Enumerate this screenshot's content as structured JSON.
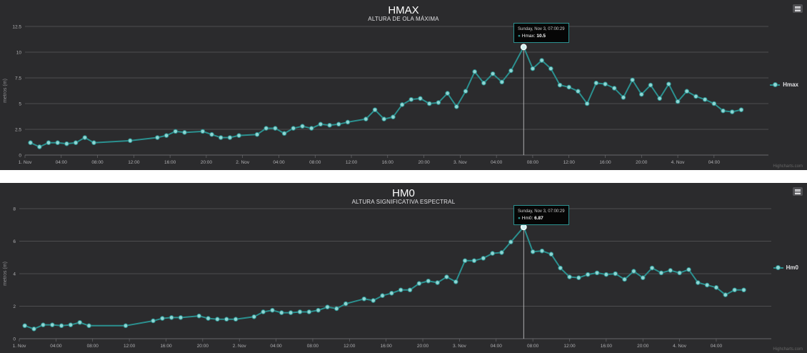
{
  "charts": [
    {
      "title": "HMAX",
      "subtitle": "ALTURA DE OLA MÁXIMA",
      "ylabel": "metros (m)",
      "legend": "Hmax",
      "credits": "Highcharts.com",
      "tooltip": {
        "header": "Sunday, Nov 3, 07:00:29",
        "series": "Hmax",
        "value": "10.5"
      }
    },
    {
      "title": "HM0",
      "subtitle": "ALTURA SIGNIFICATIVA ESPECTRAL",
      "ylabel": "metros (m)",
      "legend": "Hm0",
      "credits": "Highcharts.com",
      "tooltip": {
        "header": "Sunday, Nov 3, 07:00:29",
        "series": "Hm0",
        "value": "6.87"
      }
    }
  ],
  "colors": {
    "series": "#2b908f",
    "marker_fill": "#8fd6d3",
    "background": "#2b2b2d",
    "grid": "#707073"
  },
  "chart_data": [
    {
      "type": "line",
      "title": "HMAX",
      "subtitle": "ALTURA DE OLA MÁXIMA",
      "ylabel": "metros (m)",
      "xlabel": "",
      "ylim": [
        0,
        12.5
      ],
      "yticks": [
        0,
        2.5,
        5,
        7.5,
        10,
        12.5
      ],
      "xlim": [
        0,
        82
      ],
      "xticks": [
        {
          "x": 0,
          "label": "1. Nov"
        },
        {
          "x": 4,
          "label": "04:00"
        },
        {
          "x": 8,
          "label": "08:00"
        },
        {
          "x": 12,
          "label": "12:00"
        },
        {
          "x": 16,
          "label": "16:00"
        },
        {
          "x": 20,
          "label": "20:00"
        },
        {
          "x": 24,
          "label": "2. Nov"
        },
        {
          "x": 28,
          "label": "04:00"
        },
        {
          "x": 32,
          "label": "08:00"
        },
        {
          "x": 36,
          "label": "12:00"
        },
        {
          "x": 40,
          "label": "16:00"
        },
        {
          "x": 44,
          "label": "20:00"
        },
        {
          "x": 48,
          "label": "3. Nov"
        },
        {
          "x": 52,
          "label": "04:00"
        },
        {
          "x": 56,
          "label": "08:00"
        },
        {
          "x": 60,
          "label": "12:00"
        },
        {
          "x": 64,
          "label": "16:00"
        },
        {
          "x": 68,
          "label": "20:00"
        },
        {
          "x": 72,
          "label": "4. Nov"
        },
        {
          "x": 76,
          "label": "04:00"
        }
      ],
      "grid": true,
      "legend_position": "right",
      "highlight_x": 55,
      "series": [
        {
          "name": "Hmax",
          "x": [
            0.6,
            1.6,
            2.6,
            3.6,
            4.6,
            5.6,
            6.6,
            7.6,
            11.6,
            14.6,
            15.6,
            16.6,
            17.6,
            19.6,
            20.6,
            21.6,
            22.6,
            23.6,
            25.6,
            26.6,
            27.6,
            28.6,
            29.6,
            30.6,
            31.6,
            32.6,
            33.6,
            34.6,
            35.6,
            37.6,
            38.6,
            39.6,
            40.6,
            41.6,
            42.6,
            43.6,
            44.6,
            45.6,
            46.6,
            47.6,
            48.6,
            49.6,
            50.6,
            51.6,
            52.6,
            53.6,
            55,
            56,
            57,
            58,
            59,
            60,
            61,
            62,
            63,
            64,
            65,
            66,
            67,
            68,
            69,
            70,
            71,
            72,
            73,
            74,
            75,
            76,
            77,
            78,
            79
          ],
          "y": [
            1.2,
            0.8,
            1.2,
            1.2,
            1.1,
            1.2,
            1.7,
            1.2,
            1.4,
            1.7,
            1.9,
            2.3,
            2.2,
            2.3,
            2.0,
            1.7,
            1.7,
            1.9,
            2.0,
            2.6,
            2.6,
            2.1,
            2.6,
            2.8,
            2.6,
            3.0,
            2.9,
            3.0,
            3.2,
            3.5,
            4.4,
            3.5,
            3.7,
            4.9,
            5.4,
            5.5,
            5.0,
            5.1,
            6.0,
            4.7,
            6.2,
            8.1,
            7.0,
            7.9,
            7.1,
            8.2,
            10.5,
            8.4,
            9.2,
            8.4,
            6.8,
            6.6,
            6.2,
            5.0,
            7.0,
            6.9,
            6.5,
            5.6,
            7.3,
            5.9,
            6.8,
            5.5,
            6.9,
            5.2,
            6.2,
            5.7,
            5.4,
            5.0,
            4.3,
            4.2,
            4.4
          ]
        }
      ]
    },
    {
      "type": "line",
      "title": "HM0",
      "subtitle": "ALTURA SIGNIFICATIVA ESPECTRAL",
      "ylabel": "metros (m)",
      "xlabel": "",
      "ylim": [
        0,
        8
      ],
      "yticks": [
        0,
        2,
        4,
        6,
        8
      ],
      "xlim": [
        0,
        82
      ],
      "xticks": [
        {
          "x": 0,
          "label": "1. Nov"
        },
        {
          "x": 4,
          "label": "04:00"
        },
        {
          "x": 8,
          "label": "08:00"
        },
        {
          "x": 12,
          "label": "12:00"
        },
        {
          "x": 16,
          "label": "16:00"
        },
        {
          "x": 20,
          "label": "20:00"
        },
        {
          "x": 24,
          "label": "2. Nov"
        },
        {
          "x": 28,
          "label": "04:00"
        },
        {
          "x": 32,
          "label": "08:00"
        },
        {
          "x": 36,
          "label": "12:00"
        },
        {
          "x": 40,
          "label": "16:00"
        },
        {
          "x": 44,
          "label": "20:00"
        },
        {
          "x": 48,
          "label": "3. Nov"
        },
        {
          "x": 52,
          "label": "04:00"
        },
        {
          "x": 56,
          "label": "08:00"
        },
        {
          "x": 60,
          "label": "12:00"
        },
        {
          "x": 64,
          "label": "16:00"
        },
        {
          "x": 68,
          "label": "20:00"
        },
        {
          "x": 72,
          "label": "4. Nov"
        },
        {
          "x": 76,
          "label": "04:00"
        }
      ],
      "grid": true,
      "legend_position": "right",
      "highlight_x": 55,
      "series": [
        {
          "name": "Hm0",
          "x": [
            0.6,
            1.6,
            2.6,
            3.6,
            4.6,
            5.6,
            6.6,
            7.6,
            11.6,
            14.6,
            15.6,
            16.6,
            17.6,
            19.6,
            20.6,
            21.6,
            22.6,
            23.6,
            25.6,
            26.6,
            27.6,
            28.6,
            29.6,
            30.6,
            31.6,
            32.6,
            33.6,
            34.6,
            35.6,
            37.6,
            38.6,
            39.6,
            40.6,
            41.6,
            42.6,
            43.6,
            44.6,
            45.6,
            46.6,
            47.6,
            48.6,
            49.6,
            50.6,
            51.6,
            52.6,
            53.6,
            55,
            56,
            57,
            58,
            59,
            60,
            61,
            62,
            63,
            64,
            65,
            66,
            67,
            68,
            69,
            70,
            71,
            72,
            73,
            74,
            75,
            76,
            77,
            78,
            79
          ],
          "y": [
            0.8,
            0.6,
            0.85,
            0.85,
            0.8,
            0.85,
            1.0,
            0.8,
            0.8,
            1.1,
            1.25,
            1.3,
            1.3,
            1.4,
            1.25,
            1.2,
            1.2,
            1.2,
            1.35,
            1.65,
            1.75,
            1.6,
            1.6,
            1.65,
            1.65,
            1.75,
            1.95,
            1.85,
            2.15,
            2.45,
            2.35,
            2.65,
            2.8,
            3.0,
            3.0,
            3.4,
            3.55,
            3.45,
            3.8,
            3.5,
            4.8,
            4.8,
            4.95,
            5.25,
            5.3,
            5.95,
            6.87,
            5.35,
            5.4,
            5.2,
            4.35,
            3.8,
            3.75,
            3.95,
            4.05,
            3.95,
            4.0,
            3.65,
            4.15,
            3.75,
            4.35,
            4.05,
            4.2,
            4.05,
            4.25,
            3.45,
            3.3,
            3.15,
            2.7,
            3.0,
            3.0
          ]
        }
      ]
    }
  ]
}
